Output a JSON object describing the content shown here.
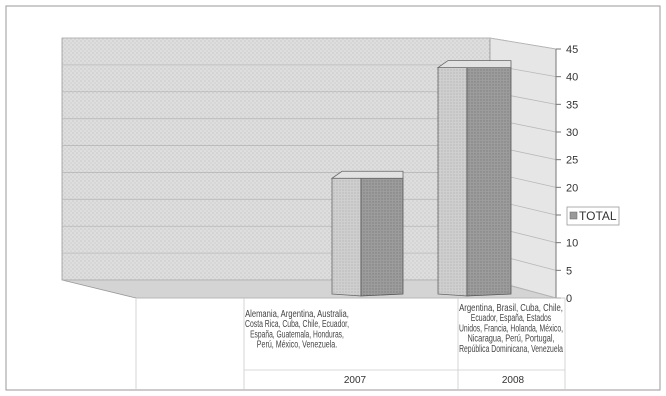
{
  "chart_data": {
    "type": "bar",
    "categories": [
      "2007",
      "2008"
    ],
    "category_countries": [
      [
        "Alemania, Argentina, Australia,",
        "Costa Rica, Cuba, Chile, Ecuador,",
        "España, Guatemala, Honduras,",
        "Perú, México, Venezuela."
      ],
      [
        "Argentina, Brasil, Cuba, Chile,",
        "Ecuador, España, Estados",
        "Unidos, Francia, Holanda, México,",
        "Nicaragua, Perú, Portugal,",
        "República Dominicana, Venezuela"
      ]
    ],
    "series": [
      {
        "name": "TOTAL",
        "values": [
          22,
          42
        ]
      }
    ],
    "ylim": [
      0,
      45
    ],
    "yticks": [
      0,
      5,
      10,
      15,
      20,
      25,
      30,
      35,
      40,
      45
    ],
    "grid": true,
    "legend_position": "right",
    "colors": {
      "wall": "#d9d9d9",
      "bar_front": "#9a9a9a",
      "bar_side": "#c8c8c8",
      "bar_top": "#e2e2e2",
      "gridline": "#b8b8b8",
      "border": "#888888"
    }
  }
}
